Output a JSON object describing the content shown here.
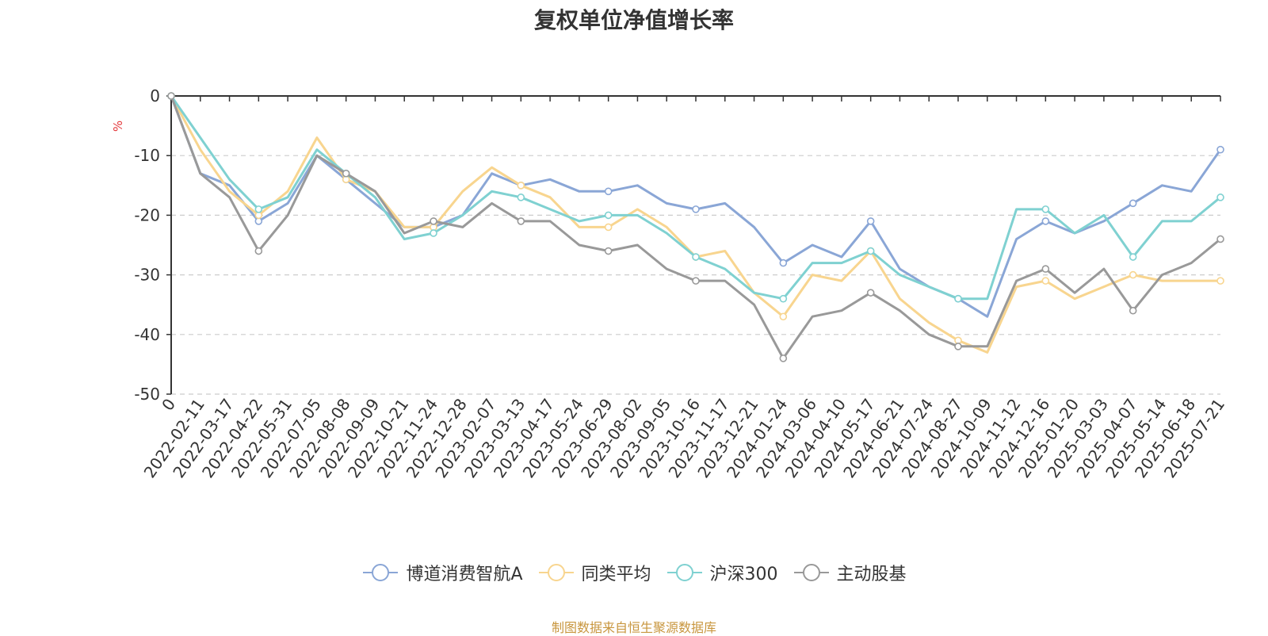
{
  "chart_data": {
    "type": "line",
    "title": "复权单位净值增长率",
    "ylabel": "%",
    "ylim": [
      -50,
      0
    ],
    "yticks": [
      0,
      -10,
      -20,
      -30,
      -40,
      -50
    ],
    "x_tick_labels": [
      "0",
      "2022-02-11",
      "2022-03-17",
      "2022-04-22",
      "2022-05-31",
      "2022-07-05",
      "2022-08-08",
      "2022-09-09",
      "2022-10-21",
      "2022-11-24",
      "2022-12-28",
      "2023-02-07",
      "2023-03-13",
      "2023-04-17",
      "2023-05-24",
      "2023-06-29",
      "2023-08-02",
      "2023-09-05",
      "2023-10-16",
      "2023-11-17",
      "2023-12-21",
      "2024-01-24",
      "2024-03-06",
      "2024-04-10",
      "2024-05-17",
      "2024-06-21",
      "2024-07-24",
      "2024-08-27",
      "2024-10-09",
      "2024-11-12",
      "2024-12-16",
      "2025-01-20",
      "2025-03-03",
      "2025-04-07",
      "2025-05-14",
      "2025-06-18",
      "2025-07-21"
    ],
    "grid": true,
    "legend_position": "bottom",
    "series": [
      {
        "name": "博道消费智航A",
        "color": "#8aa6d6",
        "values": [
          0,
          -13,
          -15,
          -21,
          -18,
          -10,
          -14,
          -18,
          -22,
          -22,
          -20,
          -13,
          -15,
          -14,
          -16,
          -16,
          -15,
          -18,
          -19,
          -18,
          -22,
          -28,
          -25,
          -27,
          -21,
          -29,
          -32,
          -34,
          -37,
          -24,
          -21,
          -23,
          -21,
          -18,
          -15,
          -16,
          -9
        ]
      },
      {
        "name": "同类平均",
        "color": "#f8d58f",
        "values": [
          0,
          -9,
          -16,
          -20,
          -16,
          -7,
          -14,
          -16,
          -22,
          -22,
          -16,
          -12,
          -15,
          -17,
          -22,
          -22,
          -19,
          -22,
          -27,
          -26,
          -33,
          -37,
          -30,
          -31,
          -26,
          -34,
          -38,
          -41,
          -43,
          -32,
          -31,
          -34,
          -32,
          -30,
          -31,
          -31,
          -31
        ]
      },
      {
        "name": "沪深300",
        "color": "#7fd1d1",
        "values": [
          0,
          -7,
          -14,
          -19,
          -17,
          -9,
          -13,
          -17,
          -24,
          -23,
          -20,
          -16,
          -17,
          -19,
          -21,
          -20,
          -20,
          -23,
          -27,
          -29,
          -33,
          -34,
          -28,
          -28,
          -26,
          -30,
          -32,
          -34,
          -34,
          -19,
          -19,
          -23,
          -20,
          -27,
          -21,
          -21,
          -17
        ]
      },
      {
        "name": "主动股基",
        "color": "#999999",
        "values": [
          0,
          -13,
          -17,
          -26,
          -20,
          -10,
          -13,
          -16,
          -23,
          -21,
          -22,
          -18,
          -21,
          -21,
          -25,
          -26,
          -25,
          -29,
          -31,
          -31,
          -35,
          -44,
          -37,
          -36,
          -33,
          -36,
          -40,
          -42,
          -42,
          -31,
          -29,
          -33,
          -29,
          -36,
          -30,
          -28,
          -24
        ]
      }
    ]
  },
  "legend": [
    {
      "label": "博道消费智航A",
      "color": "#8aa6d6"
    },
    {
      "label": "同类平均",
      "color": "#f8d58f"
    },
    {
      "label": "沪深300",
      "color": "#7fd1d1"
    },
    {
      "label": "主动股基",
      "color": "#999999"
    }
  ],
  "source_note": "制图数据来自恒生聚源数据库"
}
